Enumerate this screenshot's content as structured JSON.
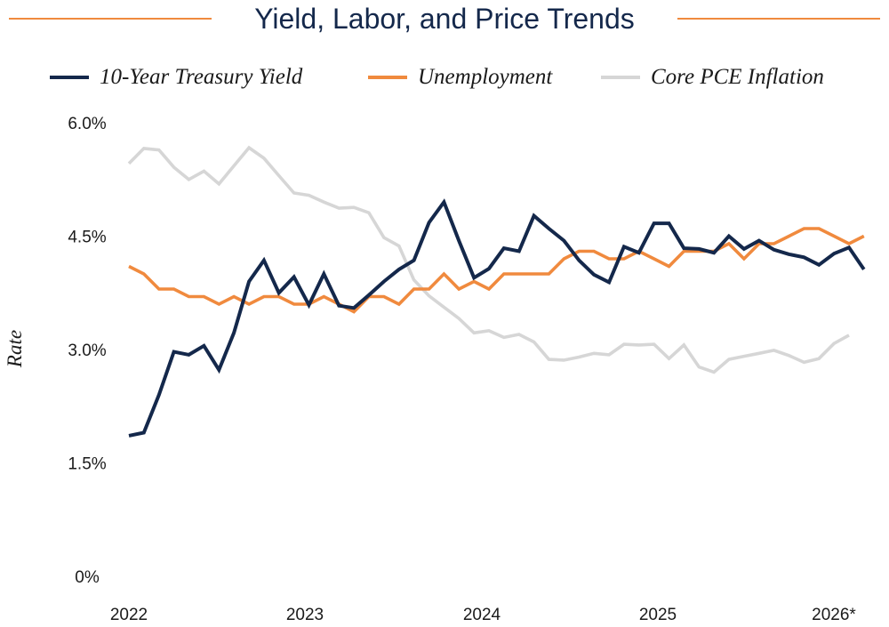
{
  "chart_data": {
    "type": "line",
    "title": "Yield, Labor, and Price Trends",
    "xlabel": "",
    "ylabel": "Rate",
    "x_ticks": [
      "2022",
      "2023",
      "2024",
      "2025",
      "2026*"
    ],
    "y_ticks": [
      "6.0%",
      "4.5%",
      "3.0%",
      "1.5%",
      "0%"
    ],
    "y_tick_values": [
      6.0,
      4.5,
      3.0,
      1.5,
      0
    ],
    "ylim": [
      0,
      6.0
    ],
    "xlim": [
      2022.0,
      2026.0
    ],
    "grid": false,
    "legend_position": "top",
    "series": [
      {
        "name": "10-Year Treasury Yield",
        "color": "#14284b",
        "x": [
          2022.0,
          2022.083,
          2022.167,
          2022.25,
          2022.333,
          2022.417,
          2022.5,
          2022.583,
          2022.667,
          2022.75,
          2022.833,
          2022.917,
          2023.0,
          2023.083,
          2023.167,
          2023.25,
          2023.333,
          2023.417,
          2023.5,
          2023.583,
          2023.667,
          2023.75,
          2023.833,
          2023.917,
          2024.0,
          2024.083,
          2024.167,
          2024.25,
          2024.333,
          2024.417,
          2024.5,
          2024.583,
          2024.667,
          2024.75,
          2024.833,
          2024.917,
          2025.0,
          2025.083,
          2025.167,
          2025.25,
          2025.333,
          2025.417,
          2025.5,
          2025.583,
          2025.667,
          2025.75,
          2025.833,
          2025.917,
          2026.0,
          2026.083
        ],
        "values": [
          1.86,
          1.9,
          2.4,
          2.97,
          2.93,
          3.05,
          2.73,
          3.22,
          3.9,
          4.18,
          3.75,
          3.96,
          3.59,
          4.0,
          3.58,
          3.55,
          3.72,
          3.9,
          4.06,
          4.18,
          4.68,
          4.95,
          4.44,
          3.95,
          4.07,
          4.34,
          4.3,
          4.77,
          4.6,
          4.44,
          4.18,
          3.99,
          3.89,
          4.36,
          4.28,
          4.67,
          4.67,
          4.34,
          4.33,
          4.28,
          4.5,
          4.33,
          4.44,
          4.32,
          4.26,
          4.22,
          4.12,
          4.27,
          4.35,
          4.06
        ]
      },
      {
        "name": "Unemployment",
        "color": "#f08a3e",
        "x": [
          2022.0,
          2022.083,
          2022.167,
          2022.25,
          2022.333,
          2022.417,
          2022.5,
          2022.583,
          2022.667,
          2022.75,
          2022.833,
          2022.917,
          2023.0,
          2023.083,
          2023.167,
          2023.25,
          2023.333,
          2023.417,
          2023.5,
          2023.583,
          2023.667,
          2023.75,
          2023.833,
          2023.917,
          2024.0,
          2024.083,
          2024.167,
          2024.25,
          2024.333,
          2024.417,
          2024.5,
          2024.583,
          2024.667,
          2024.75,
          2024.833,
          2024.917,
          2025.0,
          2025.083,
          2025.167,
          2025.25,
          2025.333,
          2025.417,
          2025.5,
          2025.583,
          2025.667,
          2025.75,
          2025.833,
          2025.917,
          2026.0,
          2026.083
        ],
        "values": [
          4.1,
          4.0,
          3.8,
          3.8,
          3.7,
          3.7,
          3.6,
          3.7,
          3.6,
          3.7,
          3.7,
          3.6,
          3.6,
          3.7,
          3.6,
          3.5,
          3.7,
          3.7,
          3.6,
          3.8,
          3.8,
          4.0,
          3.8,
          3.9,
          3.8,
          4.0,
          4.0,
          4.0,
          4.0,
          4.2,
          4.3,
          4.3,
          4.2,
          4.2,
          4.3,
          4.2,
          4.1,
          4.3,
          4.3,
          4.3,
          4.4,
          4.2,
          4.4,
          4.4,
          4.5,
          4.6,
          4.6,
          4.5,
          4.4,
          4.5
        ]
      },
      {
        "name": "Core PCE Inflation",
        "color": "#d6d6d6",
        "x": [
          2022.0,
          2022.083,
          2022.167,
          2022.25,
          2022.333,
          2022.417,
          2022.5,
          2022.583,
          2022.667,
          2022.75,
          2022.833,
          2022.917,
          2023.0,
          2023.083,
          2023.167,
          2023.25,
          2023.333,
          2023.417,
          2023.5,
          2023.583,
          2023.667,
          2023.75,
          2023.833,
          2023.917,
          2024.0,
          2024.083,
          2024.167,
          2024.25,
          2024.333,
          2024.417,
          2024.5,
          2024.583,
          2024.667,
          2024.75,
          2024.833,
          2024.917,
          2025.0,
          2025.083,
          2025.167,
          2025.25,
          2025.333,
          2025.417,
          2025.5,
          2025.583,
          2025.667,
          2025.75,
          2025.833,
          2025.917,
          2026.0
        ],
        "values": [
          5.46,
          5.66,
          5.64,
          5.41,
          5.25,
          5.36,
          5.19,
          5.43,
          5.67,
          5.53,
          5.3,
          5.07,
          5.04,
          4.95,
          4.87,
          4.88,
          4.81,
          4.48,
          4.37,
          3.92,
          3.71,
          3.56,
          3.41,
          3.22,
          3.25,
          3.16,
          3.2,
          3.1,
          2.87,
          2.86,
          2.9,
          2.95,
          2.93,
          3.07,
          3.06,
          3.07,
          2.88,
          3.06,
          2.77,
          2.7,
          2.87,
          2.91,
          2.95,
          2.99,
          2.92,
          2.83,
          2.88,
          3.08,
          3.19
        ]
      }
    ]
  }
}
